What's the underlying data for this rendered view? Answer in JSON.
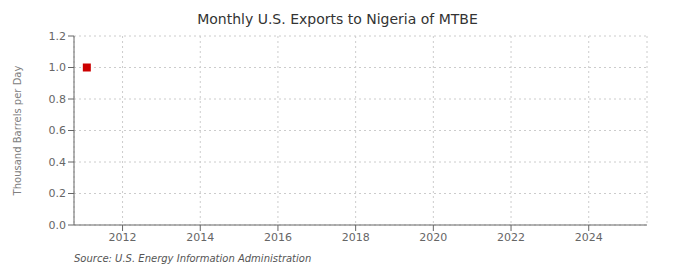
{
  "chart_data": {
    "type": "scatter",
    "title": "Monthly U.S. Exports to Nigeria of MTBE",
    "ylabel": "Thousand Barrels per Day",
    "annotations": [
      "Source: U.S. Energy Information Administration"
    ],
    "x": [
      2011.08
    ],
    "values": [
      1.0
    ],
    "color": "#cc0000",
    "marker": "square",
    "xlim": [
      2010.75,
      2025.5
    ],
    "xticks": [
      2012,
      2014,
      2016,
      2018,
      2020,
      2022,
      2024
    ],
    "ylim": [
      0.0,
      1.2
    ],
    "yticks": [
      {
        "value": 0,
        "label": "0.0"
      },
      0.2,
      0.4,
      0.6,
      0.8,
      {
        "value": 1,
        "label": "1.0"
      },
      1.2
    ],
    "grid": true
  }
}
